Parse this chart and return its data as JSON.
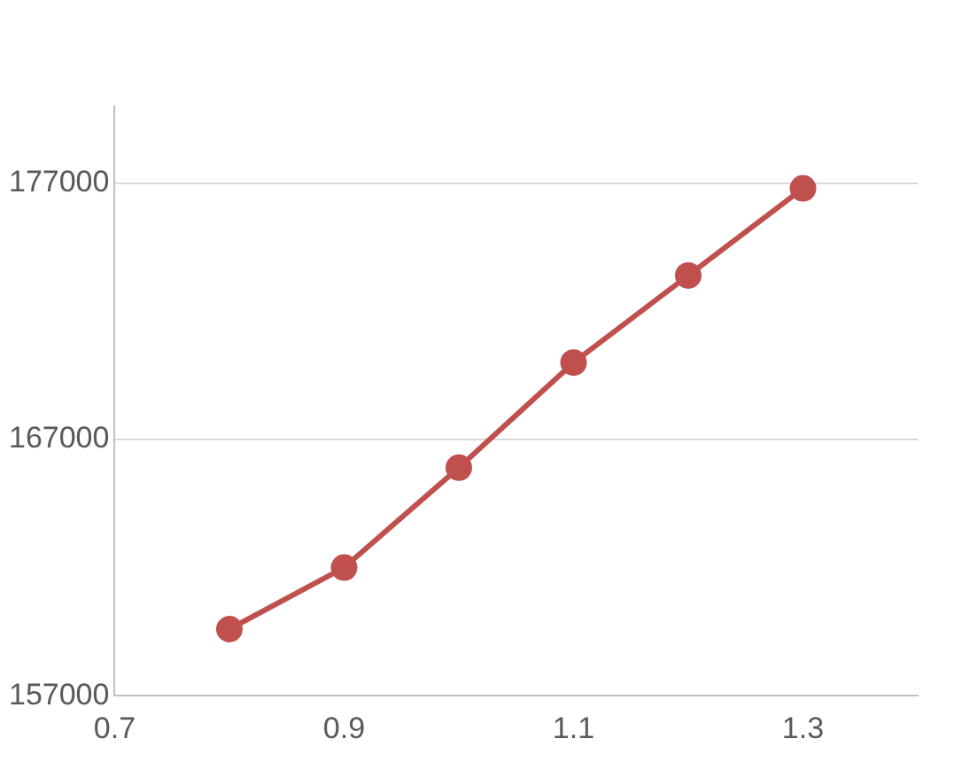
{
  "chart_data": {
    "type": "line",
    "x": [
      0.8,
      0.9,
      1.0,
      1.1,
      1.2,
      1.3
    ],
    "series": [
      {
        "color": "#c0504d",
        "values": [
          159600,
          162000,
          165900,
          170000,
          173400,
          176800
        ]
      }
    ],
    "xlim": [
      0.7,
      1.4
    ],
    "xticks": [
      0.7,
      0.9,
      1.1,
      1.3
    ],
    "ylim": [
      157000,
      180000
    ],
    "yticks": [
      157000,
      167000,
      177000
    ],
    "grid": "y",
    "legend": false,
    "marker": "circle",
    "line_style": "solid"
  }
}
